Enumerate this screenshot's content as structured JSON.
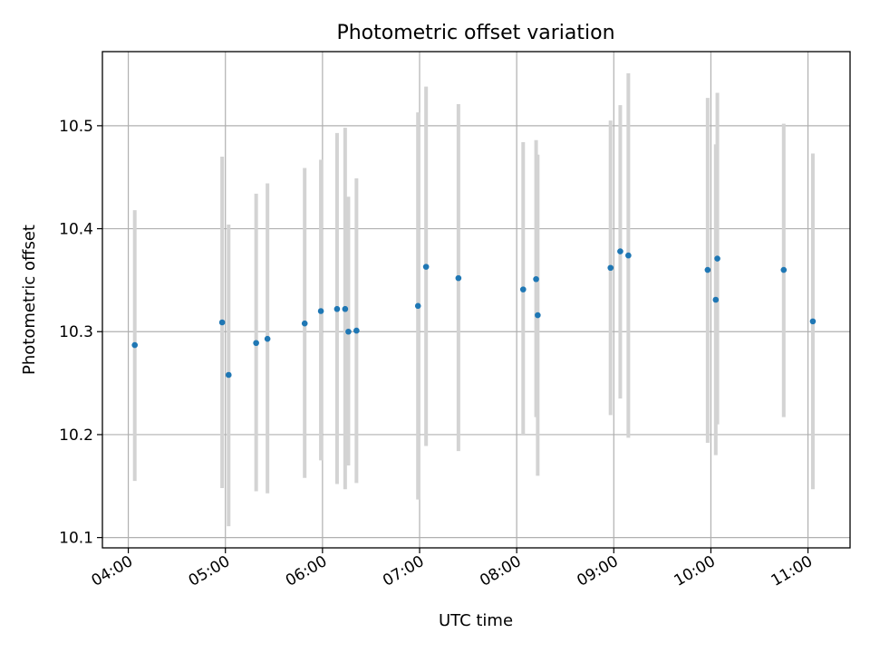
{
  "chart_data": {
    "type": "scatter",
    "title": "Photometric offset variation",
    "xlabel": "UTC time",
    "ylabel": "Photometric offset",
    "x_ticks": [
      "04:00",
      "05:00",
      "06:00",
      "07:00",
      "08:00",
      "09:00",
      "10:00",
      "11:00"
    ],
    "y_ticks": [
      "10.1",
      "10.2",
      "10.3",
      "10.4",
      "10.5"
    ],
    "xlim": [
      "03:44",
      "11:26"
    ],
    "ylim": [
      10.09,
      10.572
    ],
    "grid": true,
    "colors": {
      "point": "#1f77b4",
      "errorbar": "#d3d3d3",
      "grid": "#b0b0b0"
    },
    "series": [
      {
        "points": [
          {
            "x": "04:04",
            "y": 10.287,
            "ylow": 10.155,
            "yhigh": 10.418
          },
          {
            "x": "04:58",
            "y": 10.309,
            "ylow": 10.148,
            "yhigh": 10.47
          },
          {
            "x": "05:02",
            "y": 10.258,
            "ylow": 10.111,
            "yhigh": 10.404
          },
          {
            "x": "05:19",
            "y": 10.289,
            "ylow": 10.145,
            "yhigh": 10.434
          },
          {
            "x": "05:26",
            "y": 10.293,
            "ylow": 10.143,
            "yhigh": 10.444
          },
          {
            "x": "05:49",
            "y": 10.308,
            "ylow": 10.158,
            "yhigh": 10.459
          },
          {
            "x": "05:59",
            "y": 10.32,
            "ylow": 10.175,
            "yhigh": 10.467
          },
          {
            "x": "06:09",
            "y": 10.322,
            "ylow": 10.152,
            "yhigh": 10.493
          },
          {
            "x": "06:14",
            "y": 10.322,
            "ylow": 10.147,
            "yhigh": 10.498
          },
          {
            "x": "06:16",
            "y": 10.3,
            "ylow": 10.17,
            "yhigh": 10.431
          },
          {
            "x": "06:21",
            "y": 10.301,
            "ylow": 10.153,
            "yhigh": 10.449
          },
          {
            "x": "06:59",
            "y": 10.325,
            "ylow": 10.137,
            "yhigh": 10.513
          },
          {
            "x": "07:04",
            "y": 10.363,
            "ylow": 10.189,
            "yhigh": 10.538
          },
          {
            "x": "07:24",
            "y": 10.352,
            "ylow": 10.184,
            "yhigh": 10.521
          },
          {
            "x": "08:04",
            "y": 10.341,
            "ylow": 10.2,
            "yhigh": 10.484
          },
          {
            "x": "08:12",
            "y": 10.351,
            "ylow": 10.217,
            "yhigh": 10.486
          },
          {
            "x": "08:13",
            "y": 10.316,
            "ylow": 10.16,
            "yhigh": 10.472
          },
          {
            "x": "08:58",
            "y": 10.362,
            "ylow": 10.219,
            "yhigh": 10.505
          },
          {
            "x": "09:04",
            "y": 10.378,
            "ylow": 10.235,
            "yhigh": 10.52
          },
          {
            "x": "09:09",
            "y": 10.374,
            "ylow": 10.197,
            "yhigh": 10.551
          },
          {
            "x": "09:58",
            "y": 10.36,
            "ylow": 10.192,
            "yhigh": 10.527
          },
          {
            "x": "10:03",
            "y": 10.331,
            "ylow": 10.18,
            "yhigh": 10.482
          },
          {
            "x": "10:04",
            "y": 10.371,
            "ylow": 10.21,
            "yhigh": 10.532
          },
          {
            "x": "10:45",
            "y": 10.36,
            "ylow": 10.217,
            "yhigh": 10.502
          },
          {
            "x": "11:03",
            "y": 10.31,
            "ylow": 10.147,
            "yhigh": 10.473
          }
        ]
      }
    ]
  }
}
